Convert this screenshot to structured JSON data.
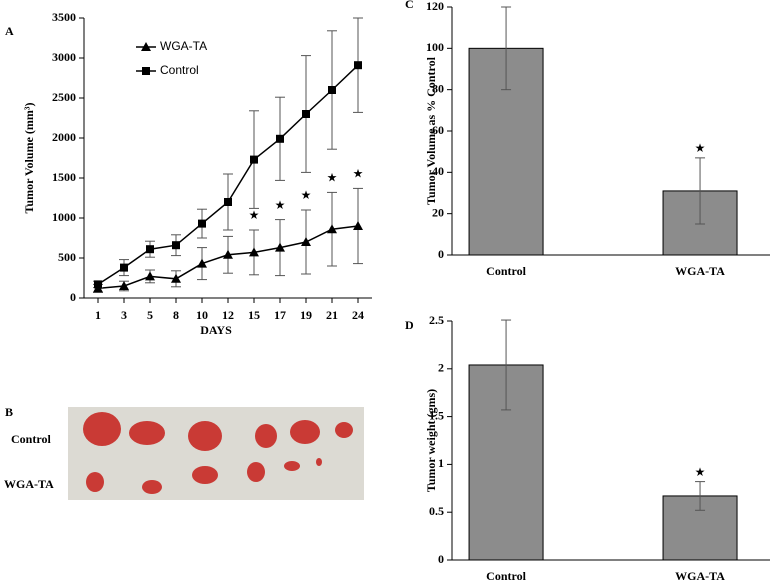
{
  "chart_data": [
    {
      "panel": "A",
      "type": "line",
      "ylabel": "Tumor Volume (mm³)",
      "xlabel": "DAYS",
      "categories": [
        "1",
        "3",
        "5",
        "8",
        "10",
        "12",
        "15",
        "17",
        "19",
        "21",
        "24"
      ],
      "series": [
        {
          "name": "WGA-TA",
          "color": "#000000",
          "marker": "triangle",
          "values": [
            120,
            150,
            270,
            240,
            430,
            540,
            570,
            630,
            700,
            860,
            900
          ],
          "errors": [
            50,
            60,
            80,
            100,
            200,
            230,
            280,
            350,
            400,
            460,
            470
          ]
        },
        {
          "name": "Control",
          "color": "#000000",
          "marker": "square",
          "values": [
            170,
            380,
            610,
            660,
            930,
            1200,
            1730,
            1990,
            2300,
            2600,
            2910
          ],
          "errors": [
            40,
            100,
            100,
            130,
            180,
            350,
            610,
            520,
            730,
            740,
            590
          ]
        }
      ],
      "annotations": [
        {
          "category": "15",
          "text": "★"
        },
        {
          "category": "17",
          "text": "★"
        },
        {
          "category": "19",
          "text": "★"
        },
        {
          "category": "21",
          "text": "★"
        },
        {
          "category": "24",
          "text": "★"
        }
      ],
      "ylim": [
        0,
        3500
      ],
      "yticks": [
        0,
        500,
        1000,
        1500,
        2000,
        2500,
        3000,
        3500
      ],
      "legend": "upper left"
    },
    {
      "panel": "C",
      "type": "bar",
      "ylabel": "Tumor Volume as % Control",
      "categories": [
        "Control",
        "WGA-TA"
      ],
      "values": [
        100,
        31
      ],
      "errors": [
        20,
        16
      ],
      "color": "#8c8c8c",
      "annotations": [
        {
          "category": "WGA-TA",
          "text": "★"
        }
      ],
      "ylim": [
        0,
        120
      ],
      "yticks": [
        0,
        20,
        40,
        60,
        80,
        100,
        120
      ]
    },
    {
      "panel": "D",
      "type": "bar",
      "ylabel": "Tumor weight (gms)",
      "categories": [
        "Control",
        "WGA-TA"
      ],
      "values": [
        2.04,
        0.67
      ],
      "errors": [
        0.47,
        0.15
      ],
      "color": "#8c8c8c",
      "annotations": [
        {
          "category": "WGA-TA",
          "text": "★"
        }
      ],
      "ylim": [
        0,
        2.5
      ],
      "yticks": [
        0,
        0.5,
        1,
        1.5,
        2,
        2.5
      ]
    }
  ],
  "photo": {
    "panel": "B",
    "rows": [
      "Control",
      "WGA-TA"
    ]
  }
}
